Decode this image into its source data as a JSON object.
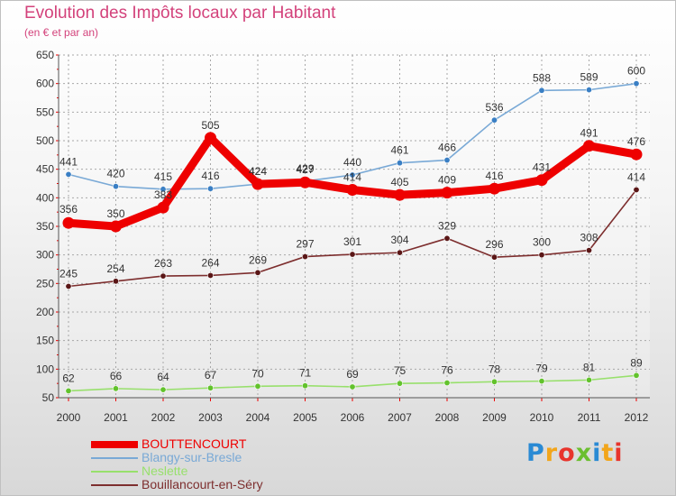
{
  "chart_data": {
    "type": "line",
    "title": "Evolution des Impôts locaux par Habitant",
    "subtitle": "(en € et par an)",
    "categories": [
      "2000",
      "2001",
      "2002",
      "2003",
      "2004",
      "2005",
      "2006",
      "2007",
      "2008",
      "2009",
      "2010",
      "2011",
      "2012"
    ],
    "ylim": [
      50,
      650
    ],
    "yticks": [
      50,
      100,
      150,
      200,
      250,
      300,
      350,
      400,
      450,
      500,
      550,
      600,
      650
    ],
    "grid": true,
    "series": [
      {
        "name": "Blangy-sur-Bresle",
        "color": "#79a9d6",
        "marker": "#3a7fc4",
        "values": [
          441,
          420,
          415,
          416,
          424,
          429,
          440,
          461,
          466,
          536,
          588,
          589,
          600
        ]
      },
      {
        "name": "Neslette",
        "color": "#98e06c",
        "marker": "#62c22c",
        "values": [
          62,
          66,
          64,
          67,
          70,
          71,
          69,
          75,
          76,
          78,
          79,
          81,
          89
        ]
      },
      {
        "name": "Bouillancourt-en-Séry",
        "color": "#7d2e2e",
        "marker": "#5a1616",
        "values": [
          245,
          254,
          263,
          264,
          269,
          297,
          301,
          304,
          329,
          296,
          300,
          308,
          414
        ]
      },
      {
        "name": "BOUTTENCOURT",
        "color": "#ee0000",
        "marker": "#ee0000",
        "thick": true,
        "values": [
          356,
          350,
          383,
          505,
          424,
          427,
          414,
          405,
          409,
          416,
          431,
          491,
          476
        ],
        "labels": [
          "356",
          "350",
          "383",
          "505",
          "424",
          "427",
          "414",
          "405",
          "409",
          "416",
          "431",
          "491",
          "476"
        ]
      }
    ],
    "legend": {
      "placement": "bottom-left",
      "items": [
        {
          "name": "BOUTTENCOURT",
          "color": "#ee0000",
          "label_color": "#ee0000"
        },
        {
          "name": "Blangy-sur-Bresle",
          "color": "#79a9d6",
          "label_color": "#79a9d6"
        },
        {
          "name": "Neslette",
          "color": "#98e06c",
          "label_color": "#98e06c"
        },
        {
          "name": "Bouillancourt-en-Séry",
          "color": "#7d2e2e",
          "label_color": "#7d2e2e"
        }
      ]
    }
  },
  "logo": {
    "letters": [
      "P",
      "r",
      "o",
      "x",
      "i",
      "t",
      "i"
    ],
    "colors": [
      "#2a8ad4",
      "#f2a51b",
      "#e8342c",
      "#6bbf2f",
      "#2a8ad4",
      "#f2a51b",
      "#e8342c"
    ]
  }
}
